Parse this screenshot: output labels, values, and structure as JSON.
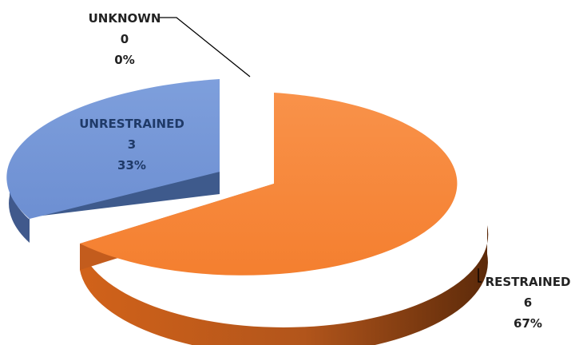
{
  "chart_data": {
    "type": "pie",
    "style": "3d-exploded",
    "categories": [
      "RESTRAINED",
      "UNRESTRAINED",
      "UNKNOWN"
    ],
    "values": [
      6,
      3,
      0
    ],
    "percents": [
      "67%",
      "33%",
      "0%"
    ],
    "counts": [
      "6",
      "3",
      "0"
    ],
    "colors": {
      "RESTRAINED": "#f6873b",
      "UNRESTRAINED": "#7395d6",
      "UNKNOWN": "#9bbb59"
    },
    "legend": "none",
    "title": ""
  }
}
